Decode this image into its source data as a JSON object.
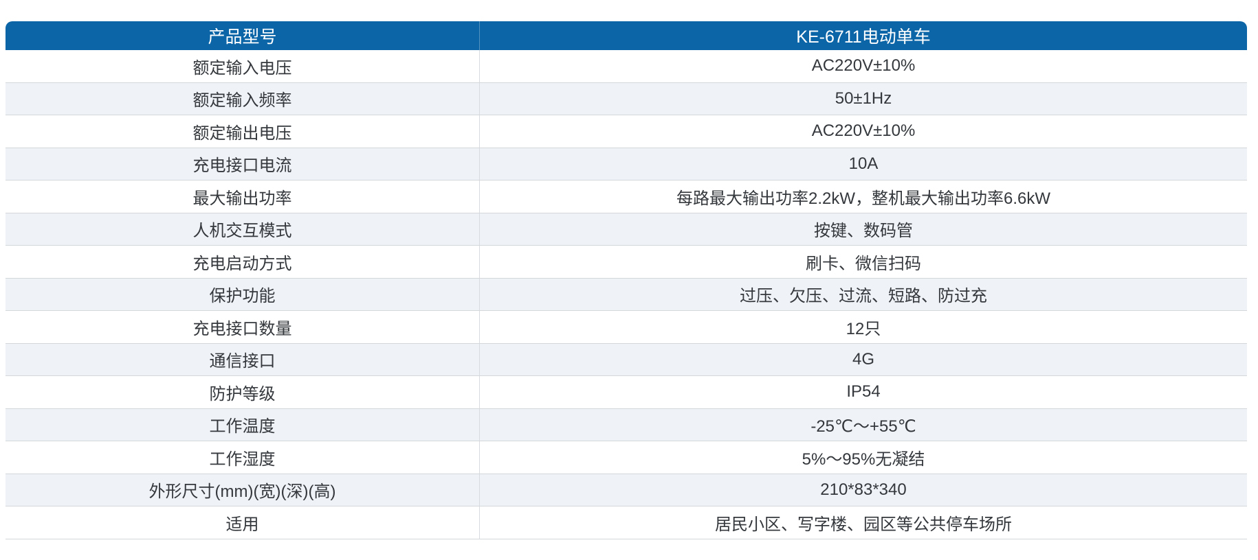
{
  "table": {
    "header": {
      "label": "产品型号",
      "value": "KE-6711电动单车"
    },
    "rows": [
      {
        "label": "额定输入电压",
        "value": "AC220V±10%"
      },
      {
        "label": "额定输入频率",
        "value": "50±1Hz"
      },
      {
        "label": "额定输出电压",
        "value": "AC220V±10%"
      },
      {
        "label": "充电接口电流",
        "value": "10A"
      },
      {
        "label": "最大输出功率",
        "value": "每路最大输出功率2.2kW，整机最大输出功率6.6kW"
      },
      {
        "label": "人机交互模式",
        "value": "按键、数码管"
      },
      {
        "label": "充电启动方式",
        "value": "刷卡、微信扫码"
      },
      {
        "label": "保护功能",
        "value": "过压、欠压、过流、短路、防过充"
      },
      {
        "label": "充电接口数量",
        "value": "12只"
      },
      {
        "label": "通信接口",
        "value": "4G"
      },
      {
        "label": "防护等级",
        "value": "IP54"
      },
      {
        "label": "工作温度",
        "value": "-25℃～+55℃"
      },
      {
        "label": "工作湿度",
        "value": "5%～95%无凝结"
      },
      {
        "label": "外形尺寸(mm)(宽)(深)(高)",
        "value": "210*83*340"
      },
      {
        "label": "适用",
        "value": "居民小区、写字楼、园区等公共停车场所"
      }
    ],
    "colors": {
      "header_bg": "#0b65a7",
      "header_text": "#ffffff",
      "zebra_bg": "#eff2f7",
      "row_border": "#d4d7da",
      "body_text": "#34383c"
    }
  }
}
